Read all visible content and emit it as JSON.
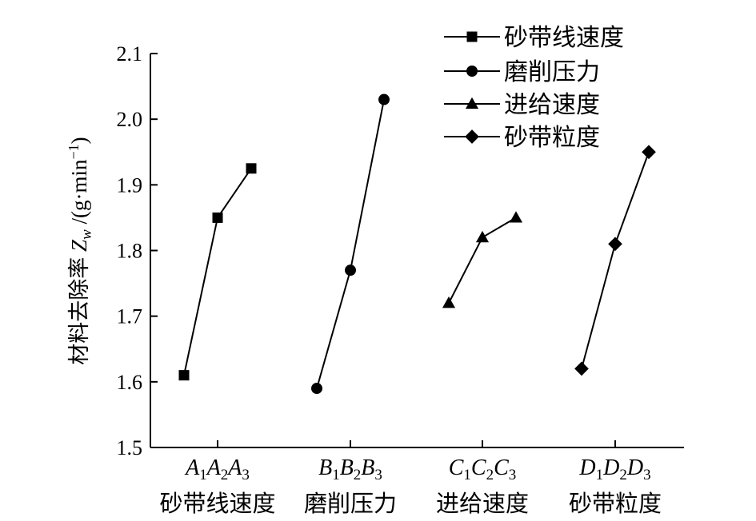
{
  "chart_data": {
    "type": "line",
    "ylabel": "材料去除率 Z_w /(g·min⁻¹)",
    "ylabel_parts": {
      "prefix": "材料去除率 ",
      "symbol": "Z",
      "symbol_sub": "w",
      "unit_prefix": " /(g·min",
      "unit_sup": "−1",
      "unit_suffix": ")"
    },
    "ylim": [
      1.5,
      2.1
    ],
    "yticks": [
      "1.5",
      "1.6",
      "1.7",
      "1.8",
      "1.9",
      "2.0",
      "2.1"
    ],
    "grid": false,
    "legend_position": "top-right",
    "series": [
      {
        "name": "砂带线速度",
        "marker": "square",
        "letter": "A",
        "group_label": "砂带线速度",
        "levels": [
          "1",
          "2",
          "3"
        ],
        "values": [
          1.61,
          1.85,
          1.925
        ]
      },
      {
        "name": "磨削压力",
        "marker": "circle",
        "letter": "B",
        "group_label": "磨削压力",
        "levels": [
          "1",
          "2",
          "3"
        ],
        "values": [
          1.59,
          1.77,
          2.03
        ]
      },
      {
        "name": "进给速度",
        "marker": "triangle",
        "letter": "C",
        "group_label": "进给速度",
        "levels": [
          "1",
          "2",
          "3"
        ],
        "values": [
          1.72,
          1.82,
          1.85
        ]
      },
      {
        "name": "砂带粒度",
        "marker": "diamond",
        "letter": "D",
        "group_label": "砂带粒度",
        "levels": [
          "1",
          "2",
          "3"
        ],
        "values": [
          1.62,
          1.81,
          1.95
        ]
      }
    ]
  }
}
